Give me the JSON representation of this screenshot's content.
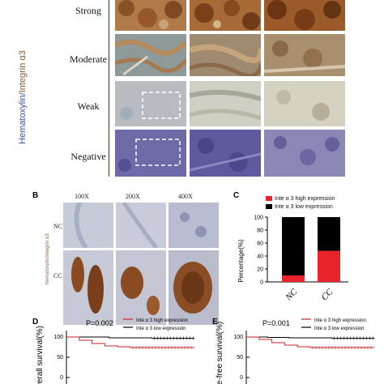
{
  "panel_a": {
    "side_label_hema": "Hematoxylin/",
    "side_label_integrin": "Integrin α3",
    "rows": [
      "Strong",
      "Moderate",
      "Weak",
      "Negative"
    ]
  },
  "panel_b": {
    "letter": "B",
    "side_label": "Hematoxylin/Integrin α3",
    "columns": [
      "100X",
      "200X",
      "400X"
    ],
    "rows": [
      "NC",
      "CC"
    ]
  },
  "panel_c": {
    "letter": "C",
    "legend_high": "Inte α 3 high expression",
    "legend_low": "Inte α 3 low expression",
    "colors": {
      "high": "#e8232a",
      "low": "#000000"
    }
  },
  "panel_d": {
    "letter": "D",
    "pvalue": "P=0.002",
    "legend_high": "Inte α 3 high expression",
    "legend_low": "Inte α 3 low expression",
    "ylabel": "Overall survival(%)",
    "y_ticks": [
      "100",
      "50",
      "0"
    ]
  },
  "panel_e": {
    "letter": "E",
    "pvalue": "P=0.001",
    "legend_high": "Inte α 3 high expression",
    "legend_low": "Inte α 3 low expression",
    "ylabel": "ease-free survival(%)",
    "y_ticks": [
      "100",
      "50",
      "0"
    ]
  },
  "chart_data": [
    {
      "type": "bar",
      "stacked": true,
      "categories": [
        "NC",
        "CC"
      ],
      "series": [
        {
          "name": "Inte α 3 high expression",
          "values": [
            10,
            48
          ]
        },
        {
          "name": "Inte α 3 low expression",
          "values": [
            90,
            52
          ]
        }
      ],
      "ylabel": "Percentage(%)",
      "ylim": [
        0,
        100
      ],
      "y_ticks": [
        "0",
        "20",
        "40",
        "60",
        "80",
        "100"
      ]
    },
    {
      "type": "line",
      "title": "",
      "ylabel": "Overall survival(%)",
      "ylim": [
        0,
        100
      ],
      "series": [
        {
          "name": "Inte α 3 low expression",
          "x": [
            0,
            5,
            10,
            20,
            30
          ],
          "y": [
            100,
            100,
            98,
            97,
            97
          ]
        },
        {
          "name": "Inte α 3 high expression",
          "x": [
            0,
            3,
            6,
            9,
            12,
            15,
            30
          ],
          "y": [
            100,
            92,
            84,
            78,
            76,
            74,
            74
          ]
        }
      ]
    },
    {
      "type": "line",
      "title": "",
      "ylabel": "ease-free survival(%)",
      "ylim": [
        0,
        100
      ],
      "series": [
        {
          "name": "Inte α 3 low expression",
          "x": [
            0,
            5,
            10,
            20,
            30
          ],
          "y": [
            100,
            99,
            98,
            97,
            97
          ]
        },
        {
          "name": "Inte α 3 high expression",
          "x": [
            0,
            3,
            6,
            9,
            12,
            15,
            30
          ],
          "y": [
            100,
            94,
            86,
            80,
            76,
            74,
            74
          ]
        }
      ]
    }
  ]
}
